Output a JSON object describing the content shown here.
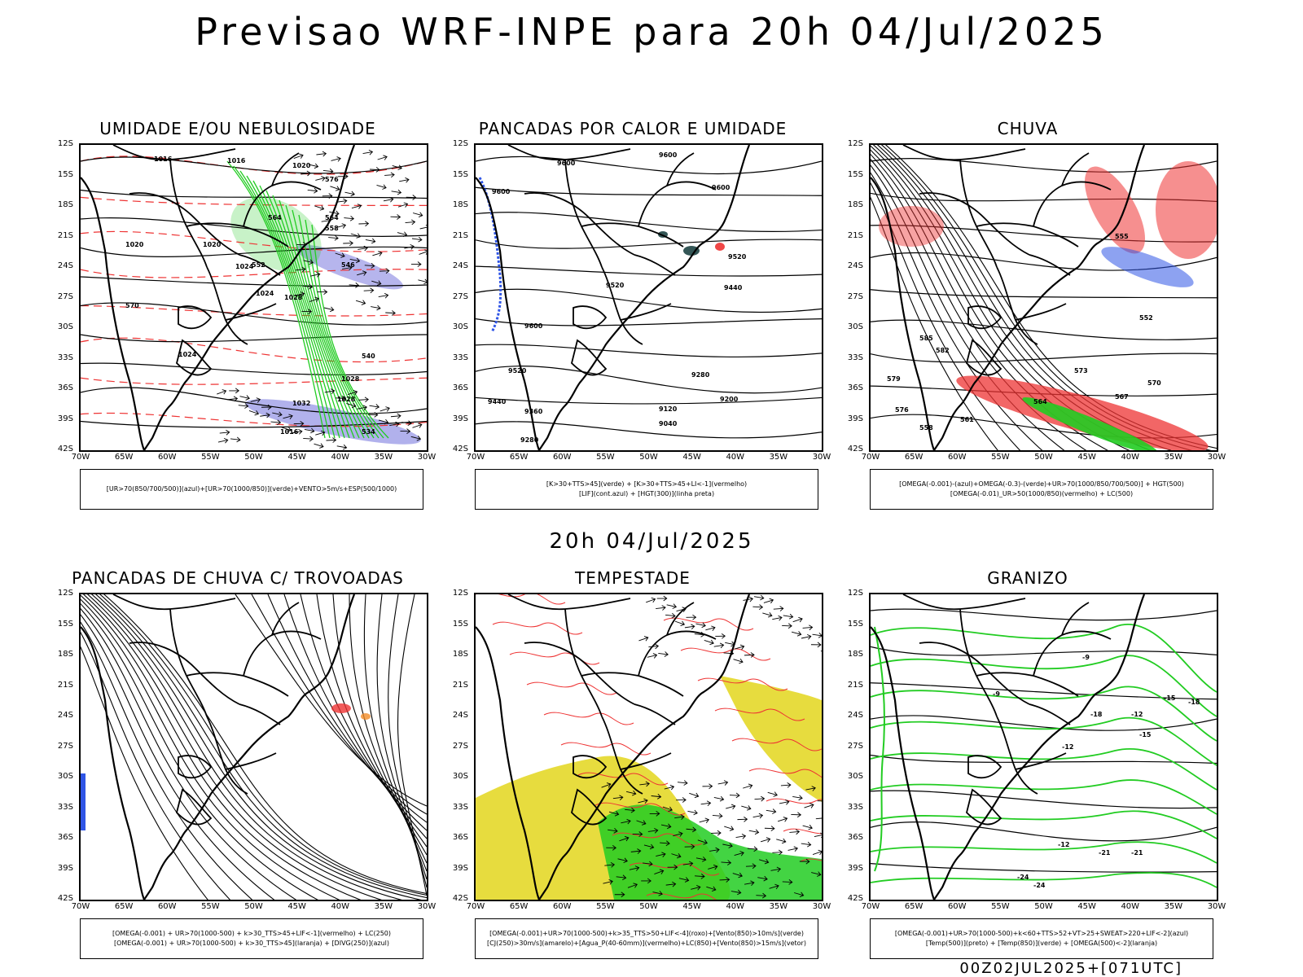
{
  "header": {
    "title": "Previsao WRF-INPE  para 20h 04/Jul/2025",
    "mid_date": "20h 04/Jul/2025",
    "footer": "00Z02JUL2025+[071UTC]"
  },
  "axes": {
    "lat_labels": [
      "12S",
      "15S",
      "18S",
      "21S",
      "24S",
      "27S",
      "30S",
      "33S",
      "36S",
      "39S",
      "42S"
    ],
    "lon_labels": [
      "70W",
      "65W",
      "60W",
      "55W",
      "50W",
      "45W",
      "40W",
      "35W",
      "30W"
    ]
  },
  "colors": {
    "blue": "#2f55e6",
    "green": "#22cc22",
    "red": "#ee3333",
    "yellow": "#e4d829",
    "lavender": "#a9a8ea",
    "orange": "#f28c28",
    "darkteal": "#1d4444"
  },
  "panels": [
    {
      "title": "UMIDADE E/OU NEBULOSIDADE",
      "legend": [
        "[UR>70(850/700/500)](azul)+[UR>70(1000/850)](verde)+VENTO>5m/s+ESP(500/1000)"
      ],
      "contour_labels": [
        "1016",
        "1016",
        "1020",
        "1020",
        "1020",
        "1024",
        "1024",
        "1028",
        "1024",
        "1028",
        "1032",
        "1028",
        "1016",
        "576",
        "570",
        "564",
        "564",
        "558",
        "552",
        "546",
        "540",
        "534"
      ]
    },
    {
      "title": "PANCADAS POR CALOR E UMIDADE",
      "legend": [
        "[K>30+TTS>45](verde) + [K>30+TTS>45+LI<-1](vermelho)",
        "[LIF](cont.azul) + [HGT(300)](linha preta)"
      ],
      "contour_labels": [
        "9600",
        "9600",
        "9600",
        "9600",
        "9520",
        "9520",
        "9440",
        "9600",
        "9520",
        "9440",
        "9360",
        "9280",
        "9280",
        "9200",
        "9120",
        "9040"
      ]
    },
    {
      "title": "CHUVA",
      "legend": [
        "[OMEGA(-0.001)-(azul)+OMEGA(-0.3)-(verde)+UR>70(1000/850/700/500)] + HGT(500)",
        "[OMEGA(-0.01)_UR>50(1000/850)(vermelho) + LC(500)"
      ],
      "contour_labels": [
        "585",
        "582",
        "579",
        "576",
        "573",
        "570",
        "567",
        "564",
        "561",
        "558",
        "555",
        "552"
      ]
    },
    {
      "title": "PANCADAS DE CHUVA C/ TROVOADAS",
      "legend": [
        "[OMEGA(-0.001) + UR>70(1000-500) + k>30_TTS>45+LIF<-1](vermelho) + LC(250)",
        "[OMEGA(-0.001) + UR>70(1000-500) + k>30_TTS>45](laranja) + [DIVG(250)](azul)"
      ],
      "contour_labels": []
    },
    {
      "title": "TEMPESTADE",
      "legend": [
        "[OMEGA(-0.001)+UR>70(1000-500)+k>35_TTS>50+LIF<-4](roxo)+[Vento(850)>10m/s](verde)",
        "[CJ(250)>30m/s](amarelo)+[Agua_P(40-60mm)](vermelho)+LC(850)+[Vento(850)>15m/s](vetor)"
      ],
      "contour_labels": []
    },
    {
      "title": "GRANIZO",
      "legend": [
        "[OMEGA(-0.001)+UR>70(1000-500)+k<60+TTS>52+VT>25+SWEAT>220+LIF<-2](azul)",
        "[Temp(500)](preto) + [Temp(850)](verde) + [OMEGA(500)<-2](laranja)"
      ],
      "contour_labels": [
        "-9",
        "-9",
        "-12",
        "-12",
        "-15",
        "-18",
        "-15",
        "-18",
        "-12",
        "-21",
        "-21",
        "-24",
        "-24"
      ]
    }
  ]
}
